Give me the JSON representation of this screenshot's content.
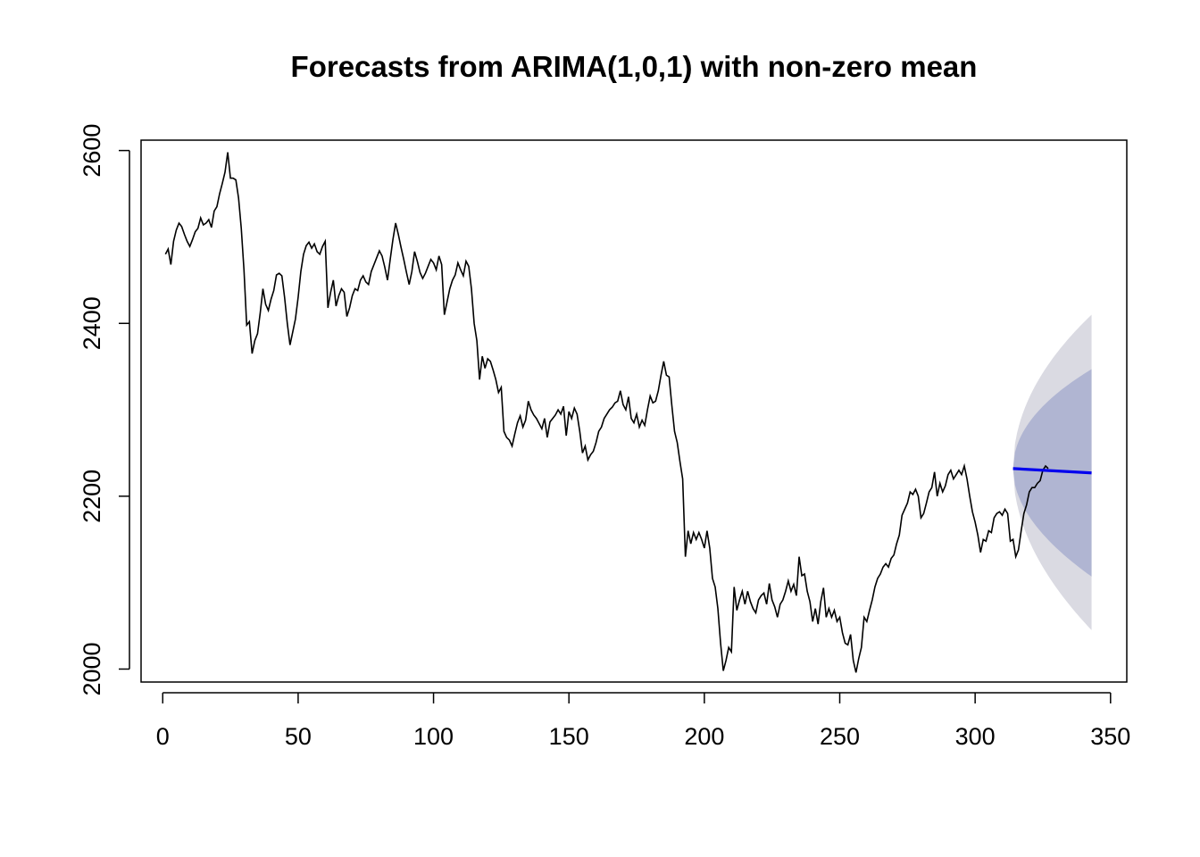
{
  "chart_data": {
    "type": "line",
    "title": "Forecasts from ARIMA(1,0,1) with non-zero mean",
    "xlabel": "",
    "ylabel": "",
    "xlim": [
      -8,
      356
    ],
    "ylim": [
      1985,
      2612
    ],
    "x_ticks": [
      0,
      50,
      100,
      150,
      200,
      250,
      300,
      350
    ],
    "y_ticks": [
      2000,
      2200,
      2400,
      2600
    ],
    "grid": false,
    "colors": {
      "observed": "#000000",
      "forecast": "#0000ee",
      "band80": "#b0b5d2",
      "band95": "#dadae2"
    },
    "series": [
      {
        "x_start": 1,
        "values": [
          2480,
          2486,
          2468,
          2495,
          2508,
          2516,
          2512,
          2503,
          2495,
          2489,
          2497,
          2506,
          2510,
          2522,
          2514,
          2516,
          2520,
          2511,
          2530,
          2535,
          2550,
          2562,
          2575,
          2598,
          2568,
          2568,
          2566,
          2545,
          2510,
          2462,
          2398,
          2402,
          2365,
          2380,
          2388,
          2412,
          2440,
          2422,
          2415,
          2428,
          2438,
          2456,
          2458,
          2455,
          2430,
          2400,
          2375,
          2390,
          2405,
          2430,
          2460,
          2480,
          2490,
          2494,
          2487,
          2492,
          2483,
          2480,
          2489,
          2495,
          2418,
          2436,
          2450,
          2420,
          2432,
          2440,
          2436,
          2408,
          2418,
          2432,
          2440,
          2438,
          2450,
          2455,
          2448,
          2445,
          2460,
          2468,
          2476,
          2484,
          2478,
          2465,
          2450,
          2474,
          2497,
          2516,
          2503,
          2488,
          2474,
          2459,
          2445,
          2460,
          2483,
          2472,
          2459,
          2452,
          2458,
          2466,
          2474,
          2470,
          2462,
          2478,
          2468,
          2410,
          2425,
          2440,
          2450,
          2456,
          2470,
          2462,
          2455,
          2472,
          2466,
          2440,
          2400,
          2380,
          2335,
          2362,
          2348,
          2359,
          2356,
          2346,
          2335,
          2320,
          2326,
          2275,
          2268,
          2265,
          2258,
          2272,
          2285,
          2293,
          2280,
          2288,
          2310,
          2300,
          2294,
          2290,
          2284,
          2278,
          2290,
          2268,
          2286,
          2290,
          2294,
          2300,
          2295,
          2304,
          2270,
          2298,
          2290,
          2302,
          2295,
          2275,
          2250,
          2258,
          2242,
          2248,
          2252,
          2262,
          2275,
          2280,
          2290,
          2295,
          2300,
          2303,
          2308,
          2310,
          2322,
          2306,
          2300,
          2315,
          2290,
          2285,
          2295,
          2280,
          2288,
          2282,
          2300,
          2316,
          2308,
          2310,
          2322,
          2340,
          2356,
          2340,
          2338,
          2305,
          2275,
          2262,
          2240,
          2220,
          2130,
          2160,
          2145,
          2158,
          2150,
          2158,
          2150,
          2140,
          2160,
          2140,
          2105,
          2095,
          2070,
          2030,
          1998,
          2010,
          2025,
          2020,
          2095,
          2068,
          2080,
          2090,
          2075,
          2090,
          2078,
          2070,
          2065,
          2080,
          2085,
          2088,
          2075,
          2099,
          2080,
          2072,
          2060,
          2075,
          2080,
          2090,
          2102,
          2090,
          2098,
          2085,
          2130,
          2108,
          2110,
          2090,
          2078,
          2055,
          2070,
          2052,
          2078,
          2094,
          2060,
          2070,
          2060,
          2068,
          2055,
          2060,
          2042,
          2030,
          2028,
          2040,
          2010,
          1996,
          2012,
          2025,
          2060,
          2055,
          2068,
          2080,
          2095,
          2105,
          2110,
          2118,
          2122,
          2118,
          2128,
          2132,
          2145,
          2155,
          2178,
          2185,
          2192,
          2205,
          2202,
          2208,
          2200,
          2175,
          2180,
          2192,
          2205,
          2210,
          2228,
          2200,
          2215,
          2205,
          2212,
          2225,
          2230,
          2220,
          2225,
          2230,
          2225,
          2235,
          2220,
          2200,
          2182,
          2170,
          2155,
          2135,
          2150,
          2148,
          2160,
          2158,
          2175,
          2180,
          2182,
          2178,
          2185,
          2180,
          2148,
          2150,
          2130,
          2138,
          2160,
          2180,
          2190,
          2205,
          2210,
          2210,
          2215,
          2218,
          2230,
          2235,
          2232
        ]
      },
      {
        "name": "forecast",
        "x": [
          314,
          343
        ],
        "values": [
          2232,
          2227
        ],
        "lo80": [
          2232,
          2107
        ],
        "hi80": [
          2232,
          2347
        ],
        "lo95": [
          2232,
          2045
        ],
        "hi95": [
          2232,
          2410
        ]
      }
    ]
  }
}
